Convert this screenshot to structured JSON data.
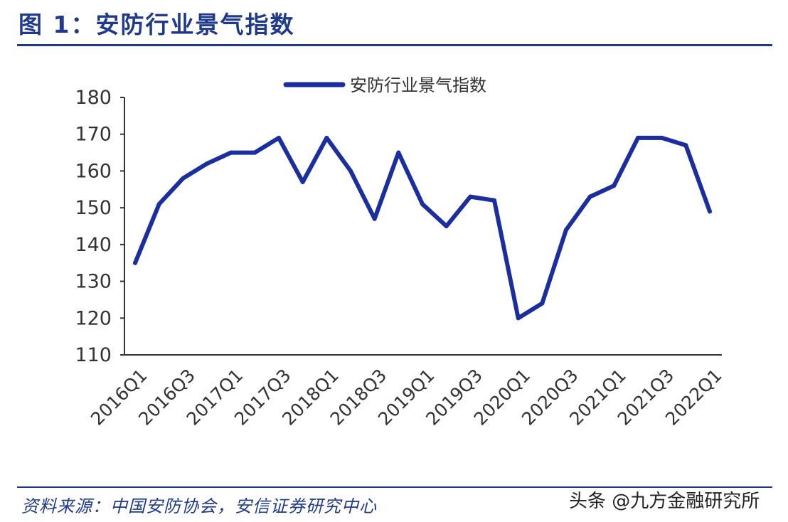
{
  "figure": {
    "title": "图 1：安防行业景气指数",
    "source": "资料来源：中国安防协会，安信证券研究中心",
    "watermark": "头条 @九方金融研究所"
  },
  "colors": {
    "accent": "#1f3a8a",
    "series": "#1a2ea0",
    "axis": "#333333"
  },
  "chart_data": {
    "type": "line",
    "title": "",
    "xlabel": "",
    "ylabel": "",
    "ylim": [
      110,
      180
    ],
    "yticks": [
      110,
      120,
      130,
      140,
      150,
      160,
      170,
      180
    ],
    "grid": false,
    "legend_position": "top-center",
    "categories": [
      "2016Q1",
      "2016Q2",
      "2016Q3",
      "2016Q4",
      "2017Q1",
      "2017Q2",
      "2017Q3",
      "2017Q4",
      "2018Q1",
      "2018Q2",
      "2018Q3",
      "2018Q4",
      "2019Q1",
      "2019Q2",
      "2019Q3",
      "2019Q4",
      "2020Q1",
      "2020Q2",
      "2020Q3",
      "2020Q4",
      "2021Q1",
      "2021Q2",
      "2021Q3",
      "2021Q4",
      "2022Q1"
    ],
    "x_tick_labels": [
      "2016Q1",
      "2016Q3",
      "2017Q1",
      "2017Q3",
      "2018Q1",
      "2018Q3",
      "2019Q1",
      "2019Q3",
      "2020Q1",
      "2020Q3",
      "2021Q1",
      "2021Q3",
      "2022Q1"
    ],
    "series": [
      {
        "name": "安防行业景气指数",
        "values": [
          135,
          151,
          158,
          162,
          165,
          165,
          169,
          157,
          169,
          160,
          147,
          165,
          151,
          145,
          153,
          152,
          120,
          124,
          144,
          153,
          156,
          169,
          169,
          167,
          149
        ]
      }
    ]
  }
}
